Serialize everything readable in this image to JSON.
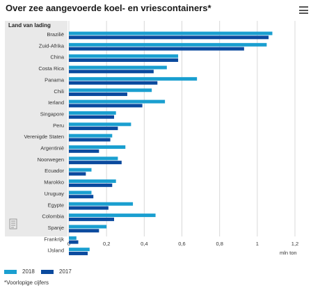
{
  "header": {
    "title": "Over zee aangevoerde koel- en vriescontainers*"
  },
  "icons": {
    "menu": "hamburger-menu-icon",
    "document": "document-icon"
  },
  "colors": {
    "series_2018": "#1a9fd0",
    "series_2017": "#0b4a9e",
    "panel": "#e9e9e9",
    "grid": "#d8d8d8"
  },
  "chart_data": {
    "type": "bar",
    "orientation": "horizontal",
    "category_header": "Land van lading",
    "categories": [
      "Brazilië",
      "Zuid-Afrika",
      "China",
      "Costa Rica",
      "Panama",
      "Chili",
      "Ierland",
      "Singapore",
      "Peru",
      "Verenigde Staten",
      "Argentinië",
      "Noorwegen",
      "Ecuador",
      "Marokko",
      "Uruguay",
      "Egypte",
      "Colombia",
      "Spanje",
      "Frankrijk",
      "IJsland"
    ],
    "series": [
      {
        "name": "2018",
        "values": [
          1.08,
          1.05,
          0.58,
          0.52,
          0.68,
          0.44,
          0.51,
          0.25,
          0.33,
          0.23,
          0.3,
          0.26,
          0.12,
          0.25,
          0.12,
          0.34,
          0.46,
          0.2,
          0.04,
          0.11
        ]
      },
      {
        "name": "2017",
        "values": [
          1.06,
          0.93,
          0.58,
          0.45,
          0.47,
          0.31,
          0.39,
          0.24,
          0.26,
          0.22,
          0.16,
          0.28,
          0.09,
          0.23,
          0.13,
          0.21,
          0.24,
          0.16,
          0.05,
          0.1
        ]
      }
    ],
    "xticks": [
      "0",
      "0,2",
      "0,4",
      "0,6",
      "0,8",
      "1",
      "1,2"
    ],
    "tick_values": [
      0,
      0.2,
      0.4,
      0.6,
      0.8,
      1,
      1.2
    ],
    "xlim": [
      0,
      1.2
    ],
    "unit_label": "mln ton",
    "grid": true,
    "legend": "bottom"
  },
  "footnote": "*Voorlopige cijfers"
}
